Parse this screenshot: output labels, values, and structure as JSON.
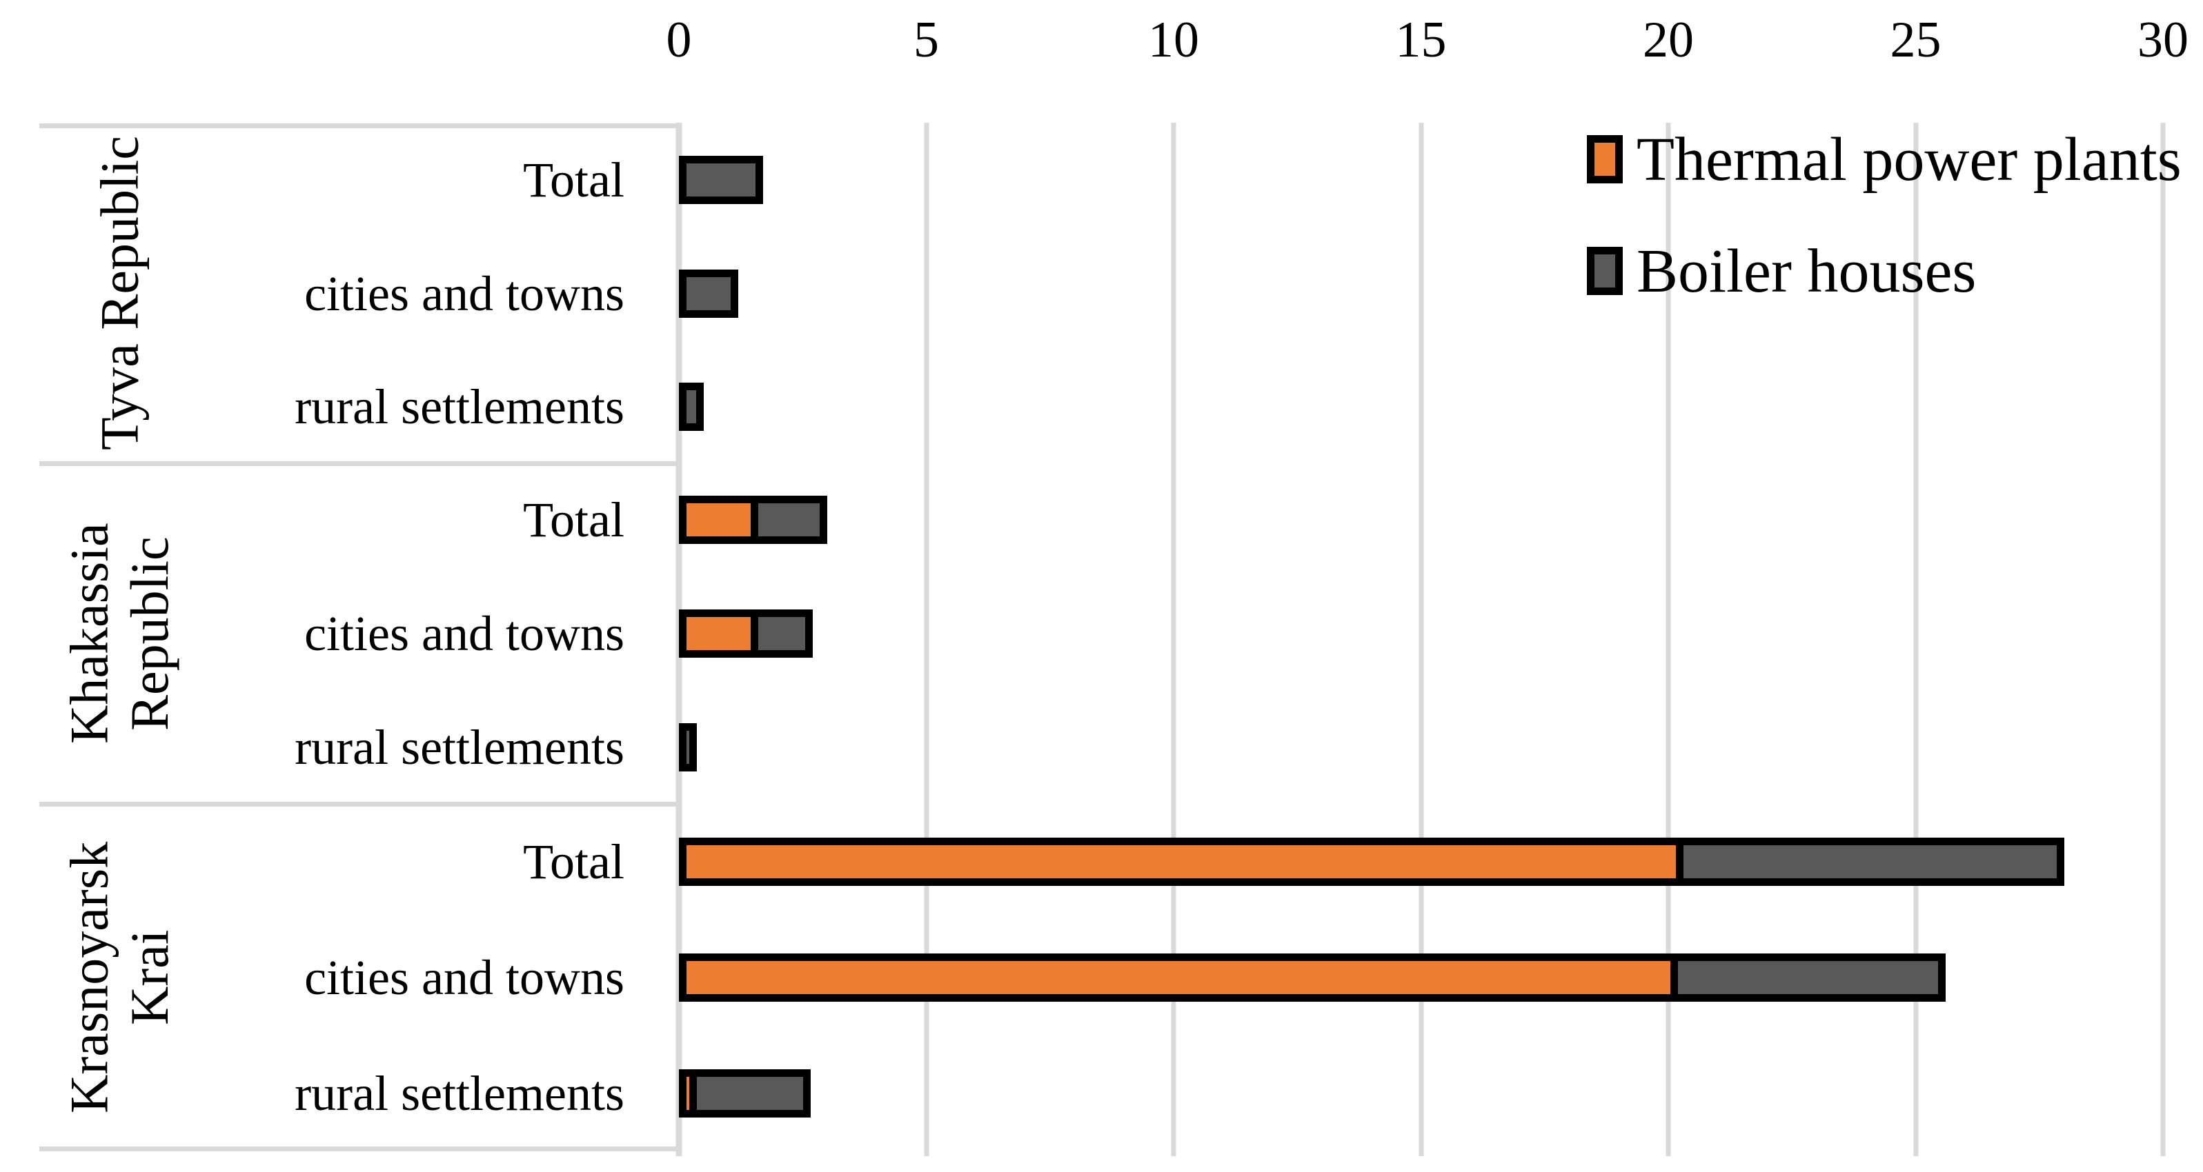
{
  "chart_data": {
    "type": "bar",
    "orientation": "horizontal",
    "stacked": true,
    "title": "",
    "xlabel": "",
    "ylabel": "",
    "xlim": [
      0,
      30
    ],
    "xticks": [
      "0",
      "5",
      "10",
      "15",
      "20",
      "25",
      "30"
    ],
    "grid": true,
    "legend_position": "top-right",
    "series": [
      "Thermal power plants",
      "Boiler houses"
    ],
    "groups": [
      {
        "region": "Tyva Republic",
        "region_lines": "Tyva Republic",
        "rows": [
          {
            "label": "Total",
            "thermal_power_plants": 0,
            "boiler_houses": 1.7
          },
          {
            "label": "cities and towns",
            "thermal_power_plants": 0,
            "boiler_houses": 1.2
          },
          {
            "label": "rural settlements",
            "thermal_power_plants": 0,
            "boiler_houses": 0.5
          }
        ]
      },
      {
        "region": "Khakassia Republic",
        "region_lines": "Khakassia\nRepublic",
        "rows": [
          {
            "label": "Total",
            "thermal_power_plants": 1.6,
            "boiler_houses": 1.4
          },
          {
            "label": "cities and towns",
            "thermal_power_plants": 1.6,
            "boiler_houses": 1.1
          },
          {
            "label": "rural settlements",
            "thermal_power_plants": 0,
            "boiler_houses": 0.3
          }
        ]
      },
      {
        "region": "Krasnoyarsk Krai",
        "region_lines": "Krasnoyarsk\nKrai",
        "rows": [
          {
            "label": "Total",
            "thermal_power_plants": 20.3,
            "boiler_houses": 7.7
          },
          {
            "label": "cities and towns",
            "thermal_power_plants": 20.2,
            "boiler_houses": 5.4
          },
          {
            "label": "rural settlements",
            "thermal_power_plants": 0.1,
            "boiler_houses": 2.3
          }
        ]
      }
    ]
  },
  "legend": {
    "items": [
      {
        "label": "Thermal power plants",
        "color": "#ED7D31"
      },
      {
        "label": "Boiler houses",
        "color": "#595959"
      }
    ]
  },
  "colors": {
    "thermal_power_plants": "#ED7D31",
    "boiler_houses": "#595959",
    "bar_border": "#000000",
    "gridline": "#D9D9D9",
    "panel_border": "#D9D9D9",
    "text": "#000000",
    "background": "#FFFFFF"
  }
}
